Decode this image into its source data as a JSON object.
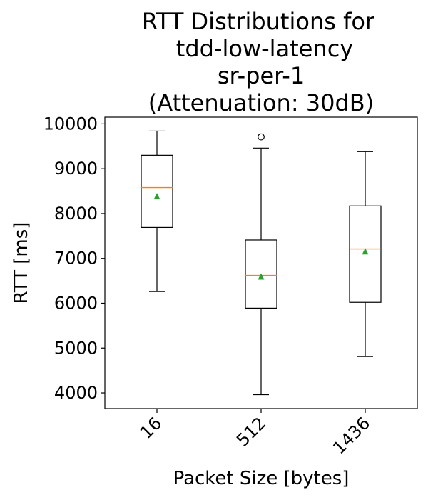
{
  "chart_data": {
    "type": "box",
    "title_lines": [
      "RTT Distributions for",
      "tdd-low-latency",
      "sr-per-1",
      "(Attenuation: 30dB)"
    ],
    "xlabel": "Packet Size [bytes]",
    "ylabel": "RTT [ms]",
    "categories": [
      "16",
      "512",
      "1436"
    ],
    "y_ticks": [
      4000,
      5000,
      6000,
      7000,
      8000,
      9000,
      10000
    ],
    "ylim": [
      3650,
      10150
    ],
    "grid": false,
    "series": [
      {
        "category": "16",
        "whisker_low": 6260,
        "q1": 7690,
        "median": 8580,
        "q3": 9300,
        "whisker_high": 9840,
        "mean": 8380,
        "outliers": []
      },
      {
        "category": "512",
        "whisker_low": 3960,
        "q1": 5890,
        "median": 6620,
        "q3": 7410,
        "whisker_high": 9460,
        "mean": 6590,
        "outliers": [
          9710
        ]
      },
      {
        "category": "1436",
        "whisker_low": 4810,
        "q1": 6020,
        "median": 7210,
        "q3": 8170,
        "whisker_high": 9380,
        "mean": 7150,
        "outliers": []
      }
    ],
    "colors": {
      "box": "#000000",
      "median": "#ff7f0e",
      "mean": "#2ca02c"
    }
  }
}
